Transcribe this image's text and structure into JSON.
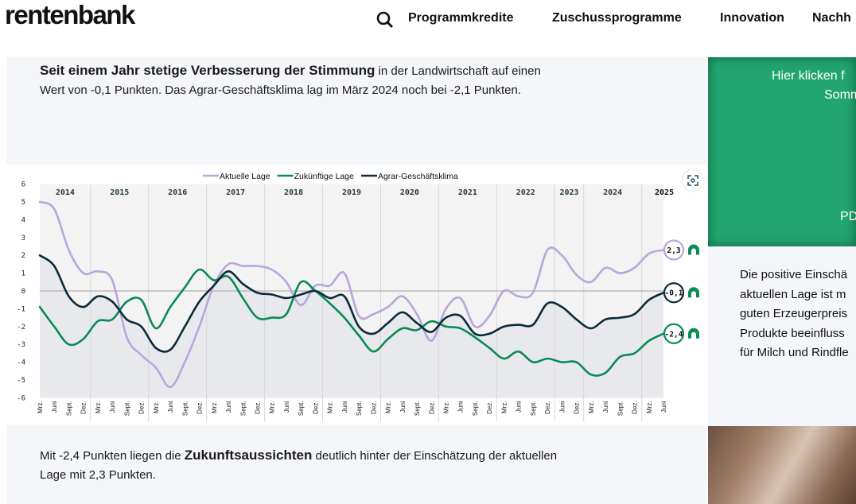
{
  "header": {
    "logo": "rentenbank",
    "search_icon": "search-icon",
    "nav": [
      "Programmkredite",
      "Zuschussprogramme",
      "Innovation",
      "Nachh"
    ]
  },
  "intro": {
    "bold": "Seit einem Jahr stetige Verbesserung der Stimmung",
    "rest": " in der Landwirtschaft auf einen Wert von -0,1 Punkten. Das Agrar-Geschäftsklima lag im März 2024 noch bei -2,1 Punkten."
  },
  "outro": {
    "pre": "Mit -2,4 Punkten liegen die ",
    "bold": "Zukunftsaussichten",
    "post": " deutlich hinter der Einschätzung der aktuellen Lage mit 2,3 Punkten."
  },
  "promo": {
    "line1": "Hier klicken f",
    "line2": "Somm",
    "line3": "PD"
  },
  "side_text": [
    "Die positive Einschä",
    "aktuellen Lage ist m",
    "guten Erzeugerpreis",
    "Produkte beeinfluss",
    "für Milch und Rindfle"
  ],
  "chart_data": {
    "type": "line",
    "legend_position": "top",
    "ylim": [
      -6,
      6
    ],
    "yticks": [
      6,
      5,
      4,
      3,
      2,
      1,
      0,
      -1,
      -2,
      -3,
      -4,
      -5,
      -6
    ],
    "years": [
      "2014",
      "2015",
      "2016",
      "2017",
      "2018",
      "2019",
      "2020",
      "2021",
      "2022",
      "2023",
      "2024",
      "2025"
    ],
    "ticks": [
      [
        "2014",
        "Mrz."
      ],
      [
        "2014",
        "Juni"
      ],
      [
        "2014",
        "Sept."
      ],
      [
        "2014",
        "Dez."
      ],
      [
        "2015",
        "Mrz."
      ],
      [
        "2015",
        "Juni"
      ],
      [
        "2015",
        "Sept."
      ],
      [
        "2015",
        "Dez."
      ],
      [
        "2016",
        "Mrz."
      ],
      [
        "2016",
        "Juni"
      ],
      [
        "2016",
        "Sept."
      ],
      [
        "2016",
        "Dez."
      ],
      [
        "2017",
        "Mrz."
      ],
      [
        "2017",
        "Juni"
      ],
      [
        "2017",
        "Sept."
      ],
      [
        "2017",
        "Dez."
      ],
      [
        "2018",
        "Mrz."
      ],
      [
        "2018",
        "Juni"
      ],
      [
        "2018",
        "Sept."
      ],
      [
        "2018",
        "Dez."
      ],
      [
        "2019",
        "Mrz."
      ],
      [
        "2019",
        "Juni"
      ],
      [
        "2019",
        "Sept."
      ],
      [
        "2019",
        "Dez."
      ],
      [
        "2020",
        "Mrz."
      ],
      [
        "2020",
        "Juni"
      ],
      [
        "2020",
        "Sept."
      ],
      [
        "2020",
        "Dez."
      ],
      [
        "2021",
        "Mrz."
      ],
      [
        "2021",
        "Juni"
      ],
      [
        "2021",
        "Sept."
      ],
      [
        "2021",
        "Dez."
      ],
      [
        "2022",
        "Mrz."
      ],
      [
        "2022",
        "Juni"
      ],
      [
        "2022",
        "Sept."
      ],
      [
        "2022",
        "Dez."
      ],
      [
        "2023",
        "Juni"
      ],
      [
        "2023",
        "Dez."
      ],
      [
        "2024",
        "Mrz."
      ],
      [
        "2024",
        "Juni"
      ],
      [
        "2024",
        "Sept."
      ],
      [
        "2024",
        "Dez."
      ],
      [
        "2025",
        "Mrz."
      ],
      [
        "2025",
        "Juni"
      ]
    ],
    "series": [
      {
        "name": "Aktuelle Lage",
        "color": "#b9a6dc",
        "end_label": "2,3",
        "values": [
          5.0,
          4.6,
          2.3,
          1.0,
          1.1,
          0.6,
          -2.6,
          -3.6,
          -4.3,
          -5.4,
          -4.0,
          -2.0,
          0.3,
          1.5,
          1.4,
          1.4,
          1.2,
          0.5,
          -0.8,
          0.3,
          0.3,
          1.0,
          -1.4,
          -1.3,
          -0.9,
          -0.3,
          -1.3,
          -2.8,
          -1.0,
          -0.4,
          -2.0,
          -1.4,
          0.0,
          -0.3,
          -0.1,
          2.3,
          2.0,
          0.9,
          0.5,
          1.3,
          1.0,
          1.3,
          2.1,
          2.3
        ]
      },
      {
        "name": "Zukünftige Lage",
        "color": "#0a8a55",
        "end_label": "-2,4",
        "values": [
          -0.9,
          -2.0,
          -3.0,
          -2.7,
          -1.7,
          -1.6,
          -0.6,
          -0.5,
          -2.1,
          -0.9,
          0.2,
          1.2,
          0.6,
          0.8,
          -0.4,
          -1.5,
          -1.5,
          -1.3,
          0.5,
          0.0,
          -0.7,
          -1.5,
          -2.5,
          -3.4,
          -2.7,
          -2.1,
          -2.2,
          -1.7,
          -2.0,
          -2.1,
          -2.6,
          -3.2,
          -3.8,
          -3.4,
          -4.0,
          -3.8,
          -4.0,
          -4.0,
          -4.7,
          -4.6,
          -3.7,
          -3.5,
          -2.8,
          -2.4
        ]
      },
      {
        "name": "Agrar-Geschäftsklima",
        "color": "#0d2b3a",
        "end_label": "-0,1",
        "values": [
          2.0,
          1.4,
          -0.3,
          -0.9,
          -0.3,
          -0.6,
          -1.6,
          -2.0,
          -3.2,
          -3.3,
          -2.0,
          -0.6,
          0.3,
          1.1,
          0.4,
          -0.1,
          -0.2,
          -0.4,
          -0.2,
          0.0,
          -0.4,
          -0.3,
          -2.0,
          -2.4,
          -1.8,
          -1.2,
          -1.8,
          -2.3,
          -1.5,
          -1.4,
          -2.4,
          -2.4,
          -2.0,
          -1.9,
          -1.9,
          -0.7,
          -0.9,
          -1.6,
          -2.1,
          -1.6,
          -1.5,
          -1.3,
          -0.5,
          -0.1
        ]
      }
    ],
    "trend_icon": "arrow-up-icon",
    "expand_icon": "fullscreen-icon"
  }
}
